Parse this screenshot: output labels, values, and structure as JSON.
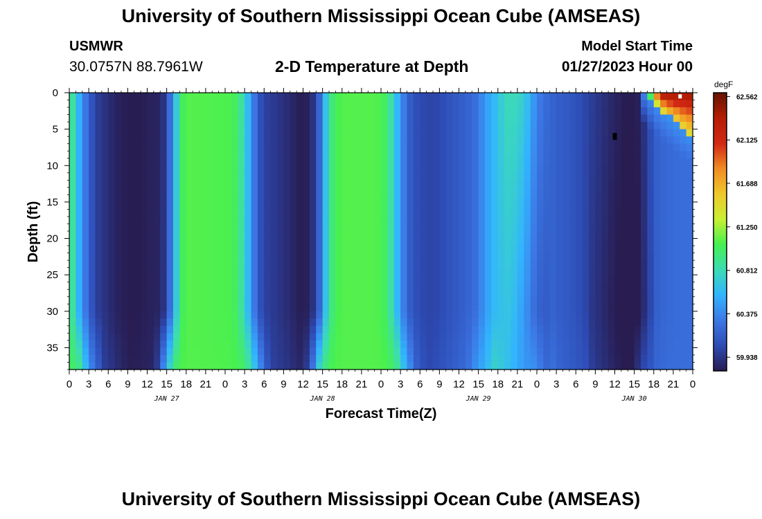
{
  "header": {
    "title": "University of Southern Mississippi Ocean Cube (AMSEAS)",
    "station": "USMWR",
    "coords": "30.0757N  88.7961W",
    "subtitle": "2-D Temperature at Depth",
    "start_label": "Model Start Time",
    "start_value": "01/27/2023 Hour 00"
  },
  "footer": {
    "title": "University of Southern Mississippi Ocean Cube (AMSEAS)"
  },
  "chart_data": {
    "type": "heatmap",
    "xlabel": "Forecast Time(Z)",
    "ylabel": "Depth (ft)",
    "x_tick_labels": [
      "0",
      "3",
      "6",
      "9",
      "12",
      "15",
      "18",
      "21",
      "0",
      "3",
      "6",
      "9",
      "12",
      "15",
      "18",
      "21",
      "0",
      "3",
      "6",
      "9",
      "12",
      "15",
      "18",
      "21",
      "0",
      "3",
      "6",
      "9",
      "12",
      "15",
      "18",
      "21",
      "0"
    ],
    "date_labels": [
      {
        "label": "JAN 27",
        "hour": 15
      },
      {
        "label": "JAN 28",
        "hour": 39
      },
      {
        "label": "JAN 29",
        "hour": 63
      },
      {
        "label": "JAN 30",
        "hour": 87
      }
    ],
    "xlim_hours": [
      0,
      96
    ],
    "y_ticks": [
      0,
      5,
      10,
      15,
      20,
      25,
      30,
      35
    ],
    "ylim": [
      0,
      38
    ],
    "y_inverted": true,
    "colorbar": {
      "unit": "degF",
      "min": 59.8,
      "max": 62.6,
      "ticks": [
        "62.562",
        "62.125",
        "61.688",
        "61.250",
        "60.812",
        "60.375",
        "59.938"
      ],
      "colors": [
        "#281c50",
        "#2d4bb4",
        "#3c78e6",
        "#32b4ff",
        "#3cdcb4",
        "#46f050",
        "#c8f032",
        "#f0c82d",
        "#f08c23",
        "#d22814",
        "#b41e05",
        "#641400"
      ]
    },
    "time_profile_hours": [
      0,
      1,
      2,
      3,
      4,
      5,
      6,
      7,
      8,
      10,
      14,
      15,
      16,
      17,
      17.5,
      18,
      19,
      25,
      26,
      27,
      28,
      29,
      30,
      32,
      36,
      37,
      38,
      39,
      40,
      41,
      42,
      43,
      47,
      48,
      49,
      50,
      51,
      52,
      53,
      54,
      55,
      56,
      58,
      60,
      62,
      63,
      64,
      66,
      67,
      68,
      69,
      70,
      71,
      72,
      74,
      76,
      78,
      80,
      82,
      84,
      85,
      86,
      87,
      88,
      89,
      90,
      91,
      92,
      94,
      96
    ],
    "time_profile_degF": [
      61.05,
      60.7,
      60.4,
      60.2,
      60.0,
      59.95,
      59.9,
      59.85,
      59.82,
      59.8,
      59.85,
      60.0,
      60.5,
      60.9,
      61.05,
      61.1,
      61.1,
      61.08,
      61.0,
      60.75,
      60.45,
      60.15,
      60.0,
      59.95,
      59.8,
      59.85,
      60.0,
      60.4,
      60.9,
      61.05,
      61.1,
      61.1,
      61.1,
      61.08,
      61.0,
      60.72,
      60.45,
      60.2,
      60.1,
      60.05,
      60.03,
      60.02,
      60.08,
      60.15,
      60.22,
      60.3,
      60.45,
      60.65,
      60.78,
      60.82,
      60.78,
      60.72,
      60.55,
      60.35,
      60.2,
      60.15,
      60.1,
      60.0,
      59.92,
      59.85,
      59.82,
      59.8,
      59.8,
      59.85,
      60.0,
      60.15,
      60.2,
      60.22,
      60.25,
      60.25
    ],
    "warm_intrusion": {
      "start_hour": 88,
      "peak_degF": 62.45,
      "max_depth_ft": 6
    },
    "dark_cells": [
      {
        "hour": 84,
        "depth_ft": 6
      }
    ],
    "light_cells": [
      {
        "hour": 94,
        "depth_ft": 0.5
      }
    ]
  }
}
